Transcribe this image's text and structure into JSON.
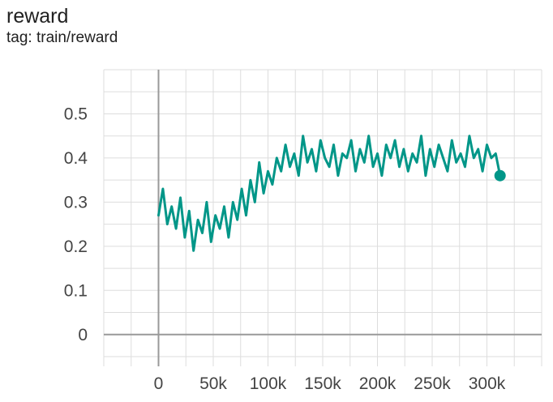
{
  "card": {
    "title": "reward",
    "tag": "tag: train/reward"
  },
  "colors": {
    "series": "#009688",
    "grid": "#dddddd",
    "zero_axis": "#999999",
    "tick_text": "#444444"
  },
  "chart_data": {
    "type": "line",
    "title": "",
    "xlabel": "",
    "ylabel": "",
    "xlim": [
      -50000,
      350000
    ],
    "ylim": [
      -0.05,
      0.6
    ],
    "x_ticks": [
      0,
      50000,
      100000,
      150000,
      200000,
      250000,
      300000
    ],
    "x_tick_labels": [
      "0",
      "50k",
      "100k",
      "150k",
      "200k",
      "250k",
      "300k"
    ],
    "y_ticks": [
      0,
      0.1,
      0.2,
      0.3,
      0.4,
      0.5
    ],
    "y_tick_labels": [
      "0",
      "0.1",
      "0.2",
      "0.3",
      "0.4",
      "0.5"
    ],
    "grid": true,
    "series": [
      {
        "color": "#009688",
        "x": [
          0,
          4000,
          8000,
          12000,
          16000,
          20000,
          24000,
          28000,
          32000,
          36000,
          40000,
          44000,
          48000,
          52000,
          56000,
          60000,
          64000,
          68000,
          72000,
          76000,
          80000,
          84000,
          88000,
          92000,
          96000,
          100000,
          104000,
          108000,
          112000,
          116000,
          120000,
          124000,
          128000,
          132000,
          136000,
          140000,
          144000,
          148000,
          152000,
          156000,
          160000,
          164000,
          168000,
          172000,
          176000,
          180000,
          184000,
          188000,
          192000,
          196000,
          200000,
          204000,
          208000,
          212000,
          216000,
          220000,
          224000,
          228000,
          232000,
          236000,
          240000,
          244000,
          248000,
          252000,
          256000,
          260000,
          264000,
          268000,
          272000,
          276000,
          280000,
          284000,
          288000,
          292000,
          296000,
          300000,
          304000,
          308000,
          312000
        ],
        "y": [
          0.27,
          0.33,
          0.25,
          0.29,
          0.24,
          0.31,
          0.22,
          0.28,
          0.19,
          0.26,
          0.23,
          0.3,
          0.21,
          0.27,
          0.24,
          0.29,
          0.22,
          0.3,
          0.26,
          0.33,
          0.27,
          0.35,
          0.3,
          0.39,
          0.32,
          0.37,
          0.34,
          0.4,
          0.37,
          0.43,
          0.38,
          0.41,
          0.36,
          0.45,
          0.39,
          0.42,
          0.37,
          0.44,
          0.4,
          0.38,
          0.43,
          0.36,
          0.41,
          0.4,
          0.44,
          0.37,
          0.42,
          0.39,
          0.45,
          0.38,
          0.41,
          0.36,
          0.43,
          0.4,
          0.44,
          0.38,
          0.42,
          0.37,
          0.41,
          0.39,
          0.45,
          0.36,
          0.42,
          0.38,
          0.43,
          0.4,
          0.37,
          0.44,
          0.39,
          0.41,
          0.38,
          0.45,
          0.4,
          0.42,
          0.37,
          0.43,
          0.4,
          0.41,
          0.36
        ]
      }
    ],
    "last_point": {
      "x": 312000,
      "y": 0.36
    }
  }
}
